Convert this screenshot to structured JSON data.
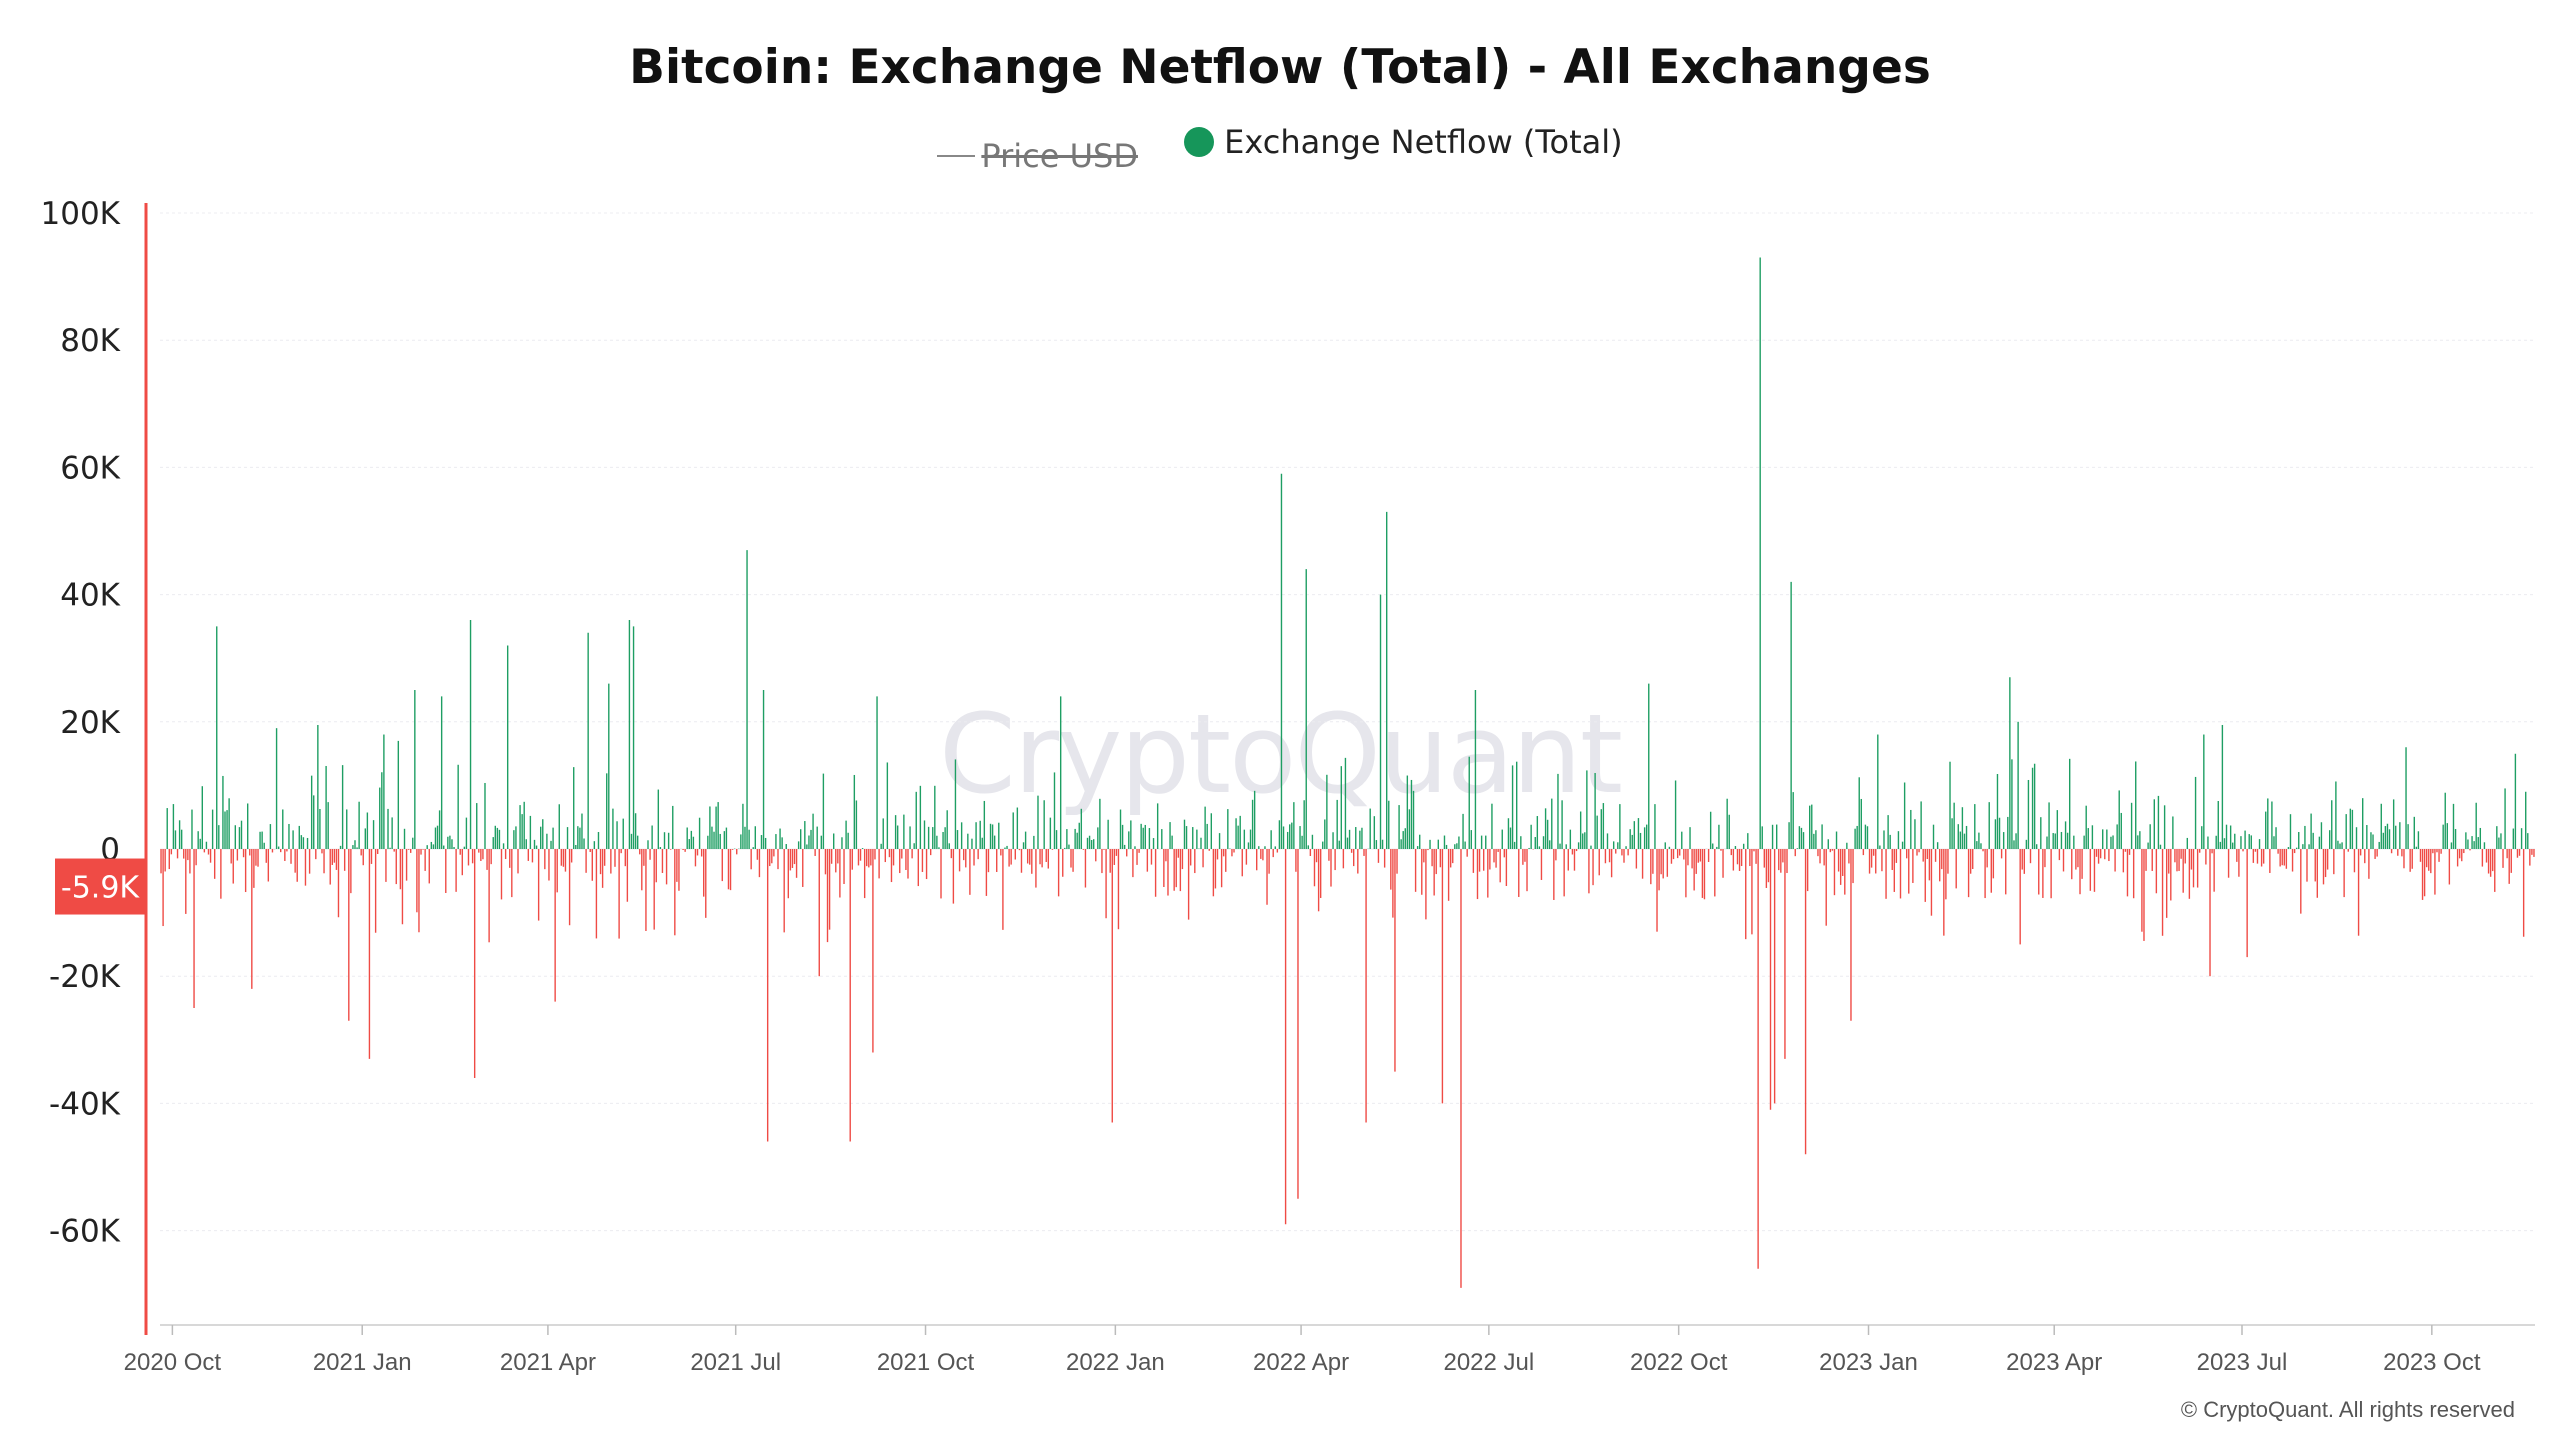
{
  "chart_data": {
    "type": "bar",
    "title": "Bitcoin: Exchange Netflow (Total) - All Exchanges",
    "legend": [
      {
        "label": "Price USD",
        "hidden": true,
        "color": "#888888"
      },
      {
        "label": "Exchange Netflow (Total)",
        "hidden": false,
        "color": "#16965a"
      }
    ],
    "positive_color": "#1e9e63",
    "negative_color": "#ef4b45",
    "x_start": "2020-09-25",
    "x_end": "2023-11-20",
    "x_ticks": [
      {
        "label": "2020 Oct",
        "date": "2020-10-01"
      },
      {
        "label": "2021 Jan",
        "date": "2021-01-01"
      },
      {
        "label": "2021 Apr",
        "date": "2021-04-01"
      },
      {
        "label": "2021 Jul",
        "date": "2021-07-01"
      },
      {
        "label": "2021 Oct",
        "date": "2021-10-01"
      },
      {
        "label": "2022 Jan",
        "date": "2022-01-01"
      },
      {
        "label": "2022 Apr",
        "date": "2022-04-01"
      },
      {
        "label": "2022 Jul",
        "date": "2022-07-01"
      },
      {
        "label": "2022 Oct",
        "date": "2022-10-01"
      },
      {
        "label": "2023 Jan",
        "date": "2023-01-01"
      },
      {
        "label": "2023 Apr",
        "date": "2023-04-01"
      },
      {
        "label": "2023 Jul",
        "date": "2023-07-01"
      },
      {
        "label": "2023 Oct",
        "date": "2023-10-01"
      }
    ],
    "y_ticks": [
      {
        "label": "100K",
        "value": 100000
      },
      {
        "label": "80K",
        "value": 80000
      },
      {
        "label": "60K",
        "value": 60000
      },
      {
        "label": "40K",
        "value": 40000
      },
      {
        "label": "20K",
        "value": 20000
      },
      {
        "label": "0",
        "value": 0
      },
      {
        "label": "-20K",
        "value": -20000
      },
      {
        "label": "-40K",
        "value": -40000
      },
      {
        "label": "-60K",
        "value": -60000
      }
    ],
    "ylim": [
      -76000,
      100000
    ],
    "current_value": -5900,
    "current_value_label": "-5.9K",
    "notable_flows": [
      {
        "date": "2020-10-22",
        "value": 35000
      },
      {
        "date": "2020-10-11",
        "value": -25000
      },
      {
        "date": "2020-11-08",
        "value": -22000
      },
      {
        "date": "2020-11-20",
        "value": 19000
      },
      {
        "date": "2020-12-10",
        "value": 19500
      },
      {
        "date": "2020-12-25",
        "value": -27000
      },
      {
        "date": "2021-01-04",
        "value": -33000
      },
      {
        "date": "2021-01-11",
        "value": 18000
      },
      {
        "date": "2021-01-18",
        "value": 17000
      },
      {
        "date": "2021-01-26",
        "value": 25000
      },
      {
        "date": "2021-02-08",
        "value": 24000
      },
      {
        "date": "2021-02-22",
        "value": 36000
      },
      {
        "date": "2021-02-24",
        "value": -36000
      },
      {
        "date": "2021-03-12",
        "value": 32000
      },
      {
        "date": "2021-04-04",
        "value": -24000
      },
      {
        "date": "2021-04-20",
        "value": 34000
      },
      {
        "date": "2021-04-30",
        "value": 26000
      },
      {
        "date": "2021-05-10",
        "value": 36000
      },
      {
        "date": "2021-05-12",
        "value": 35000
      },
      {
        "date": "2021-07-06",
        "value": 47000
      },
      {
        "date": "2021-07-14",
        "value": 25000
      },
      {
        "date": "2021-07-16",
        "value": -46000
      },
      {
        "date": "2021-08-10",
        "value": -20000
      },
      {
        "date": "2021-08-25",
        "value": -46000
      },
      {
        "date": "2021-09-07",
        "value": 24000
      },
      {
        "date": "2021-09-05",
        "value": -32000
      },
      {
        "date": "2021-12-05",
        "value": 24000
      },
      {
        "date": "2021-12-30",
        "value": -43000
      },
      {
        "date": "2022-03-22",
        "value": 59000
      },
      {
        "date": "2022-03-24",
        "value": -59000
      },
      {
        "date": "2022-03-30",
        "value": -55000
      },
      {
        "date": "2022-04-03",
        "value": 44000
      },
      {
        "date": "2022-05-02",
        "value": -43000
      },
      {
        "date": "2022-05-09",
        "value": 40000
      },
      {
        "date": "2022-05-12",
        "value": 53000
      },
      {
        "date": "2022-05-16",
        "value": -35000
      },
      {
        "date": "2022-06-08",
        "value": -40000
      },
      {
        "date": "2022-06-24",
        "value": 25000
      },
      {
        "date": "2022-06-17",
        "value": -69000
      },
      {
        "date": "2022-09-16",
        "value": 26000
      },
      {
        "date": "2022-09-20",
        "value": -13000
      },
      {
        "date": "2022-11-09",
        "value": 93000
      },
      {
        "date": "2022-11-08",
        "value": -66000
      },
      {
        "date": "2022-11-14",
        "value": -41000
      },
      {
        "date": "2022-11-16",
        "value": -40000
      },
      {
        "date": "2022-11-21",
        "value": -33000
      },
      {
        "date": "2022-11-24",
        "value": 42000
      },
      {
        "date": "2022-12-01",
        "value": -48000
      },
      {
        "date": "2022-12-23",
        "value": -27000
      },
      {
        "date": "2023-01-05",
        "value": 18000
      },
      {
        "date": "2023-03-10",
        "value": 27000
      },
      {
        "date": "2023-03-14",
        "value": 20000
      },
      {
        "date": "2023-03-15",
        "value": -15000
      },
      {
        "date": "2023-06-12",
        "value": 18000
      },
      {
        "date": "2023-06-15",
        "value": -20000
      },
      {
        "date": "2023-06-21",
        "value": 19500
      },
      {
        "date": "2023-07-03",
        "value": -17000
      },
      {
        "date": "2023-09-18",
        "value": 16000
      },
      {
        "date": "2023-11-15",
        "value": 9000
      }
    ],
    "series_note": "Daily bars; positive = inflow (green), negative = outflow (red)"
  },
  "watermark": "CryptoQuant",
  "copyright": "© CryptoQuant. All rights reserved"
}
